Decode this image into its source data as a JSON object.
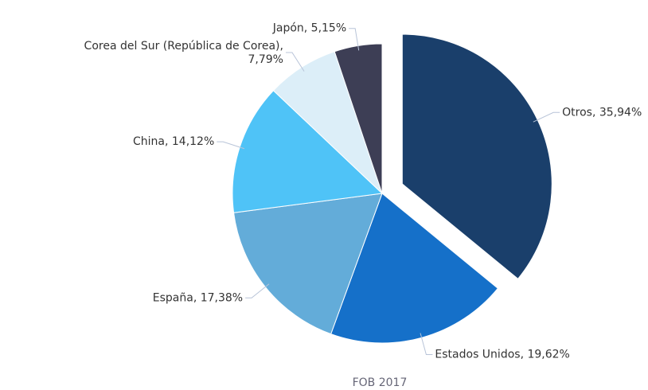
{
  "chart_data": {
    "type": "pie",
    "subtitle": "FOB 2017",
    "values": [
      35.94,
      19.62,
      17.38,
      14.12,
      7.79,
      5.15
    ],
    "value_labels": [
      "Otros, 35,94%",
      "Estados Unidos, 19,62%",
      "España, 17,38%",
      "China, 14,12%",
      "Corea del Sur (República de Corea),\n7,79%",
      "Japón, 5,15%"
    ],
    "colors": [
      "#1a3f6b",
      "#1570c9",
      "#63acd9",
      "#4fc3f7",
      "#dceef8",
      "#3d3e55"
    ],
    "exploded": [
      true,
      false,
      false,
      false,
      false,
      false
    ]
  }
}
